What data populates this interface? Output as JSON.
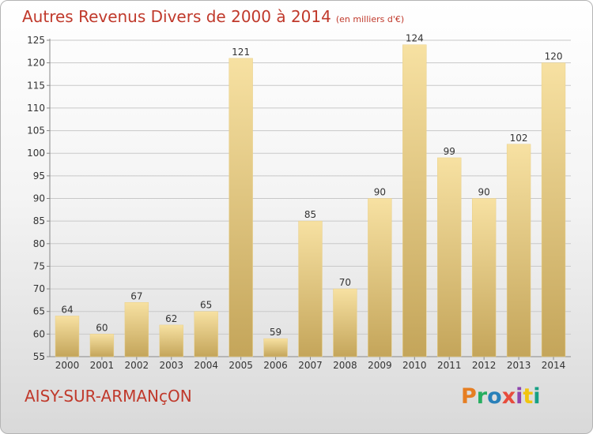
{
  "title": "Autres Revenus Divers de 2000 à 2014",
  "unit_note": "(en milliers d'€)",
  "commune": "AISY-SUR-ARMANçON",
  "logo_text": "Proxiti",
  "colors": {
    "title": "#c0392b",
    "bar_light": "#f5dc98",
    "bar_dark": "#c8a95c",
    "grid": "#c8c8c8"
  },
  "chart_data": {
    "type": "bar",
    "title": "Autres Revenus Divers de 2000 à 2014",
    "subtitle": "(en milliers d'€)",
    "categories": [
      "2000",
      "2001",
      "2002",
      "2003",
      "2004",
      "2005",
      "2006",
      "2007",
      "2008",
      "2009",
      "2010",
      "2011",
      "2012",
      "2013",
      "2014"
    ],
    "values": [
      64,
      60,
      67,
      62,
      65,
      121,
      59,
      85,
      70,
      90,
      124,
      99,
      90,
      102,
      120
    ],
    "ylim": [
      55,
      125
    ],
    "yticks": [
      55,
      60,
      65,
      70,
      75,
      80,
      85,
      90,
      95,
      100,
      105,
      110,
      115,
      120,
      125
    ],
    "grid": true,
    "xlabel": "",
    "ylabel": ""
  }
}
